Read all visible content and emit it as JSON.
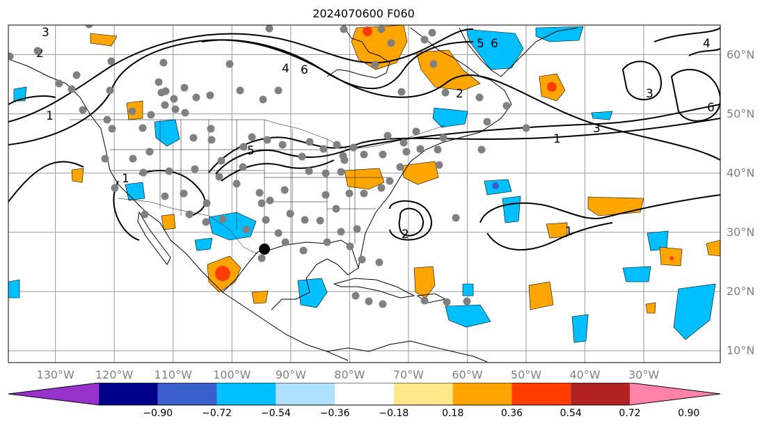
{
  "title": "2024070600 F060",
  "map": {
    "projection": "equirectangular",
    "lon_range": [
      -138,
      -17
    ],
    "lat_range": [
      8,
      65
    ],
    "lat_ticks": [
      {
        "value": 10,
        "label": "10°N"
      },
      {
        "value": 20,
        "label": "20°N"
      },
      {
        "value": 30,
        "label": "30°N"
      },
      {
        "value": 40,
        "label": "40°N"
      },
      {
        "value": 50,
        "label": "50°N"
      },
      {
        "value": 60,
        "label": "60°N"
      }
    ],
    "lon_ticks": [
      {
        "value": -130,
        "label": "130°W"
      },
      {
        "value": -120,
        "label": "120°W"
      },
      {
        "value": -110,
        "label": "110°W"
      },
      {
        "value": -100,
        "label": "100°W"
      },
      {
        "value": -90,
        "label": "90°W"
      },
      {
        "value": -80,
        "label": "80°W"
      },
      {
        "value": -70,
        "label": "70°W"
      },
      {
        "value": -60,
        "label": "60°W"
      },
      {
        "value": -50,
        "label": "50°W"
      },
      {
        "value": -40,
        "label": "40°W"
      },
      {
        "value": -30,
        "label": "30°W"
      }
    ],
    "contour_labels": [
      "1",
      "2",
      "3",
      "4",
      "5",
      "6"
    ]
  },
  "colorbar": {
    "colors": [
      "#9932cc",
      "#00008b",
      "#3a5fcd",
      "#00bfff",
      "#b0e0ff",
      "#ffffff",
      "#ffe88a",
      "#ffa500",
      "#ff3d00",
      "#b22222",
      "#ff82ab"
    ],
    "labels": [
      "−0.90",
      "−0.72",
      "−0.54",
      "−0.36",
      "−0.18",
      "0.18",
      "0.36",
      "0.54",
      "0.72",
      "0.90"
    ]
  }
}
